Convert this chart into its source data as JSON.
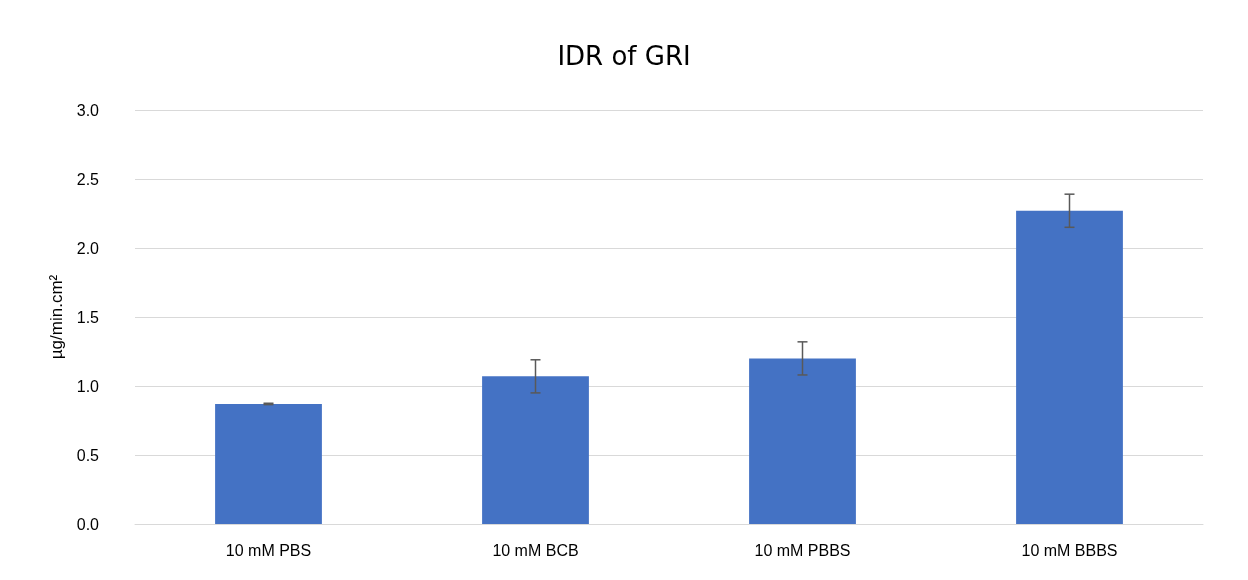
{
  "chart_data": {
    "type": "bar",
    "title": "IDR of GRI",
    "ylabel": "µg/min.cm²",
    "categories": [
      "10 mM PBS",
      "10 mM BCB",
      "10 mM PBBS",
      "10 mM BBBS"
    ],
    "values": [
      0.87,
      1.07,
      1.2,
      2.27
    ],
    "errors": [
      0.005,
      0.12,
      0.12,
      0.12
    ],
    "color": "#4472c4",
    "ylim": [
      0,
      3
    ],
    "yticks": [
      {
        "value": 0,
        "label": "0.0"
      },
      0.5,
      {
        "value": 1,
        "label": "1.0"
      },
      1.5,
      {
        "value": 2,
        "label": "2.0"
      },
      2.5,
      {
        "value": 3,
        "label": "3.0"
      }
    ],
    "grid": "y"
  }
}
